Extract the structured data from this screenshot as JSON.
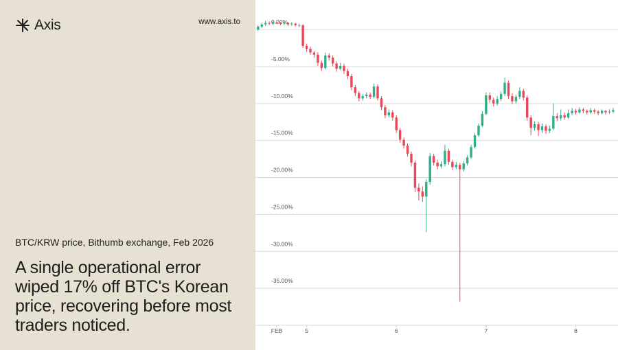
{
  "brand": "Axis",
  "url": "www.axis.to",
  "chart_data": {
    "type": "candlestick",
    "subtitle": "BTC/KRW price, Bithumb exchange, Feb 2026",
    "title": "A single operational error wiped 17% off BTC's Korean price, recovering before most traders noticed.",
    "up_color": "#2fae8a",
    "down_color": "#e9485a",
    "grid": true,
    "xlim": [
      -0.7,
      96.3
    ],
    "xticks": [
      {
        "value": 5,
        "label": "FEB"
      },
      {
        "value": 13,
        "label": "5"
      },
      {
        "value": 37,
        "label": "6"
      },
      {
        "value": 61,
        "label": "7"
      },
      {
        "value": 85,
        "label": "8"
      }
    ],
    "ylim": [
      -40,
      4
    ],
    "yticks": [
      {
        "value": 0,
        "label": "0.00%"
      },
      {
        "value": -5,
        "label": "-5.00%"
      },
      {
        "value": -10,
        "label": "-10.00%"
      },
      {
        "value": -15,
        "label": "-15.00%"
      },
      {
        "value": -20,
        "label": "-20.00%"
      },
      {
        "value": -25,
        "label": "-25.00%"
      },
      {
        "value": -30,
        "label": "-30.00%"
      },
      {
        "value": -35,
        "label": "-35.00%"
      }
    ],
    "open": [
      0.0,
      0.4,
      0.7,
      0.9,
      0.8,
      1.0,
      0.9,
      0.8,
      0.9,
      0.7,
      0.8,
      0.6,
      0.6,
      -2.2,
      -2.6,
      -3.1,
      -3.4,
      -4.5,
      -5.2,
      -3.5,
      -3.8,
      -4.6,
      -5.3,
      -4.9,
      -5.6,
      -6.3,
      -7.8,
      -8.6,
      -9.3,
      -9.0,
      -8.8,
      -9.1,
      -7.7,
      -9.3,
      -10.5,
      -11.6,
      -11.2,
      -11.9,
      -13.6,
      -14.9,
      -15.7,
      -16.8,
      -18.0,
      -21.4,
      -21.9,
      -22.6,
      -20.6,
      -17.1,
      -18.0,
      -18.5,
      -18.2,
      -16.4,
      -17.9,
      -18.6,
      -18.3,
      -18.9,
      -18.1,
      -17.3,
      -15.9,
      -14.3,
      -13.0,
      -11.4,
      -8.9,
      -9.5,
      -10.0,
      -9.4,
      -8.7,
      -7.2,
      -9.0,
      -9.7,
      -9.1,
      -8.3,
      -9.2,
      -11.9,
      -13.3,
      -12.8,
      -13.6,
      -13.1,
      -13.7,
      -13.4,
      -11.7,
      -12.0,
      -11.6,
      -11.9,
      -11.3,
      -11.0,
      -11.2,
      -10.8,
      -11.0,
      -11.2,
      -10.9,
      -11.1,
      -11.3,
      -11.0,
      -11.2,
      -11.1
    ],
    "high": [
      0.6,
      0.9,
      1.2,
      1.1,
      1.2,
      1.1,
      1.0,
      1.1,
      1.0,
      1.0,
      0.9,
      0.8,
      0.7,
      -1.9,
      -2.3,
      -2.9,
      -3.1,
      -4.2,
      -3.1,
      -3.2,
      -3.5,
      -4.3,
      -4.5,
      -4.6,
      -5.3,
      -6.0,
      -7.5,
      -8.3,
      -8.7,
      -8.5,
      -8.5,
      -7.3,
      -7.4,
      -9.0,
      -10.2,
      -10.8,
      -10.9,
      -11.6,
      -13.3,
      -14.6,
      -15.4,
      -16.5,
      -17.7,
      -20.8,
      -21.2,
      -20.2,
      -16.7,
      -16.8,
      -17.6,
      -17.8,
      -15.6,
      -16.1,
      -17.6,
      -17.9,
      -18.0,
      -17.8,
      -17.0,
      -15.6,
      -14.0,
      -12.7,
      -11.0,
      -8.5,
      -8.5,
      -9.2,
      -9.0,
      -8.4,
      -6.5,
      -6.9,
      -8.6,
      -8.8,
      -7.8,
      -8.0,
      -8.9,
      -11.6,
      -12.4,
      -12.5,
      -12.7,
      -12.8,
      -13.0,
      -10.0,
      -11.3,
      -10.8,
      -11.2,
      -10.8,
      -10.6,
      -10.7,
      -10.5,
      -10.6,
      -10.8,
      -10.6,
      -10.7,
      -10.9,
      -10.8,
      -10.9,
      -10.8,
      -10.6
    ],
    "low": [
      -0.2,
      0.2,
      0.5,
      0.6,
      0.6,
      0.7,
      0.6,
      0.6,
      0.5,
      0.5,
      0.4,
      0.3,
      -2.5,
      -3.0,
      -3.4,
      -3.8,
      -4.9,
      -5.6,
      -5.4,
      -4.2,
      -5.0,
      -5.7,
      -5.5,
      -6.0,
      -6.7,
      -8.2,
      -9.0,
      -9.7,
      -9.6,
      -9.3,
      -9.4,
      -9.3,
      -9.6,
      -10.9,
      -12.0,
      -11.9,
      -12.3,
      -14.0,
      -15.3,
      -16.1,
      -17.2,
      -18.5,
      -22.0,
      -23.1,
      -23.3,
      -27.4,
      -21.0,
      -18.4,
      -18.9,
      -18.8,
      -18.5,
      -18.3,
      -19.0,
      -18.9,
      -36.8,
      -19.2,
      -18.4,
      -17.5,
      -16.1,
      -14.5,
      -13.2,
      -11.6,
      -9.9,
      -10.4,
      -10.3,
      -9.7,
      -9.0,
      -9.4,
      -10.1,
      -10.0,
      -9.4,
      -9.6,
      -12.3,
      -14.3,
      -13.7,
      -14.4,
      -14.0,
      -14.1,
      -14.0,
      -13.6,
      -12.4,
      -12.3,
      -12.2,
      -12.1,
      -11.6,
      -11.5,
      -11.4,
      -11.3,
      -11.5,
      -11.4,
      -11.4,
      -11.6,
      -11.5,
      -11.5,
      -11.4,
      -11.3
    ],
    "close": [
      0.4,
      0.7,
      0.9,
      0.8,
      1.0,
      0.9,
      0.8,
      0.9,
      0.7,
      0.8,
      0.6,
      0.6,
      -2.2,
      -2.6,
      -3.1,
      -3.4,
      -4.5,
      -5.2,
      -3.5,
      -3.8,
      -4.6,
      -5.3,
      -4.9,
      -5.6,
      -6.3,
      -7.8,
      -8.6,
      -9.3,
      -9.0,
      -8.8,
      -9.1,
      -7.7,
      -9.3,
      -10.5,
      -11.6,
      -11.2,
      -11.9,
      -13.6,
      -14.9,
      -15.7,
      -16.8,
      -18.0,
      -21.4,
      -21.9,
      -22.6,
      -20.6,
      -17.1,
      -18.0,
      -18.5,
      -18.2,
      -16.4,
      -17.9,
      -18.6,
      -18.3,
      -18.9,
      -18.1,
      -17.3,
      -15.9,
      -14.3,
      -13.0,
      -11.4,
      -8.9,
      -9.5,
      -10.0,
      -9.4,
      -8.7,
      -7.2,
      -9.0,
      -9.7,
      -9.1,
      -8.3,
      -9.2,
      -11.9,
      -13.3,
      -12.8,
      -13.6,
      -13.1,
      -13.7,
      -13.4,
      -11.7,
      -12.0,
      -11.6,
      -11.9,
      -11.3,
      -11.0,
      -11.2,
      -10.8,
      -11.0,
      -11.2,
      -10.9,
      -11.1,
      -11.3,
      -11.0,
      -11.2,
      -11.1,
      -10.9
    ]
  }
}
